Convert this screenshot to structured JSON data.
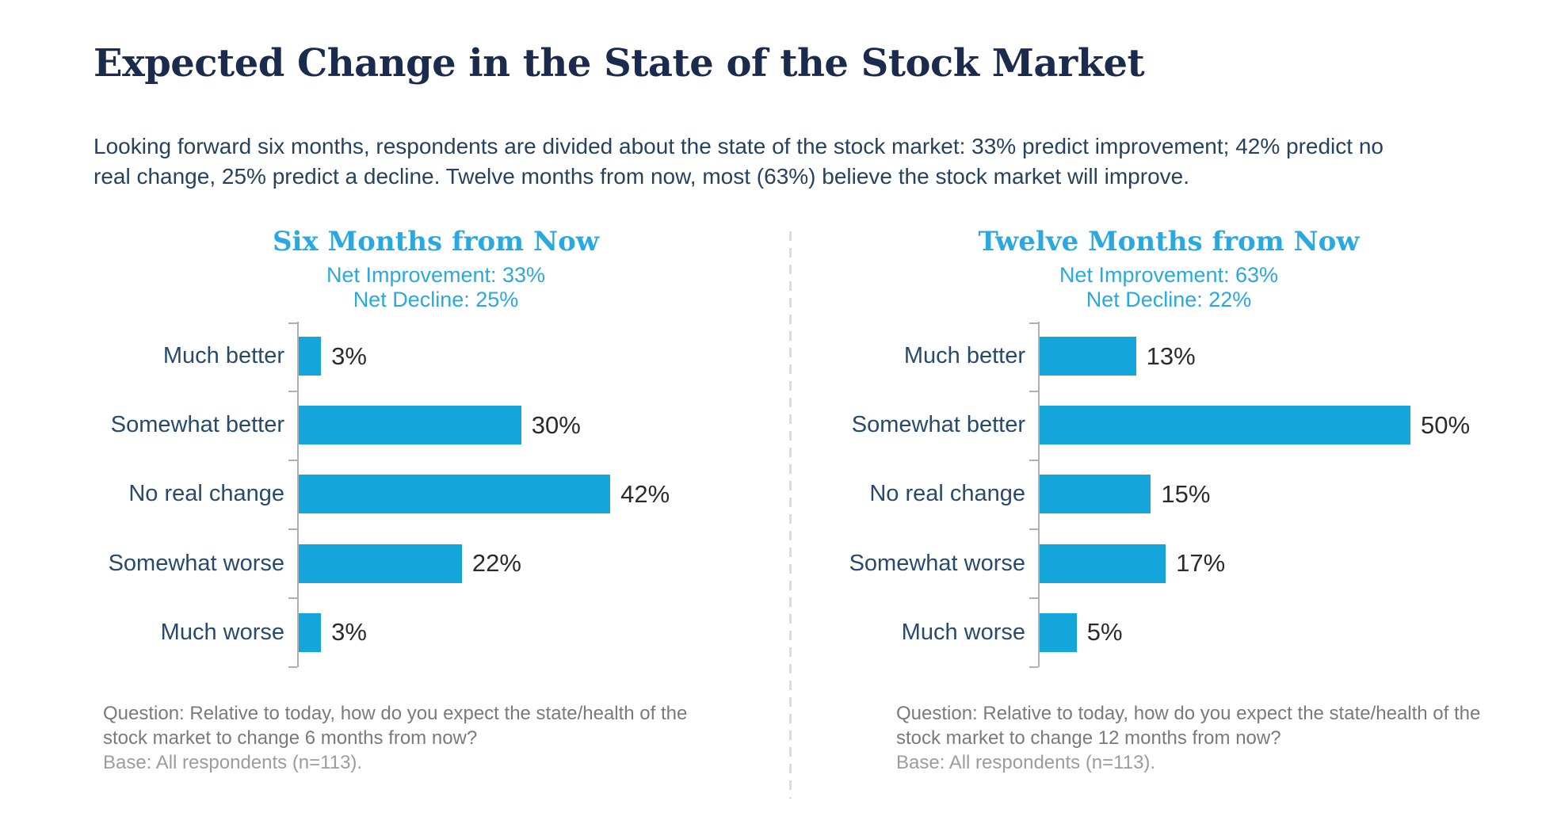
{
  "page": {
    "title": "Expected Change in the State of the Stock Market",
    "intro_line1": "Looking forward six months, respondents are divided about the state of the stock market: 33% predict improvement; 42% predict no",
    "intro_line2": "real change, 25% predict a decline. Twelve months from now, most (63%) believe the stock market will improve."
  },
  "colors": {
    "title_navy": "#1b2b4d",
    "body_navy": "#26425f",
    "accent_blue": "#29a9e0",
    "bar_blue": "#14a5db",
    "category_navy": "#274a6d",
    "value_dark": "#2b2b2b",
    "axis_gray": "#b0b0b0",
    "footnote_gray": "#7a7a7a",
    "base_gray": "#9c9c9c",
    "divider_gray": "#dcdcdc"
  },
  "chart_data": [
    {
      "type": "bar",
      "orientation": "horizontal",
      "title": "Six Months from Now",
      "net_improvement_label": "Net Improvement: 33%",
      "net_decline_label": "Net Decline: 25%",
      "categories": [
        "Much better",
        "Somewhat better",
        "No real change",
        "Somewhat worse",
        "Much worse"
      ],
      "values": [
        3,
        30,
        42,
        22,
        3
      ],
      "value_labels": [
        "3%",
        "30%",
        "42%",
        "22%",
        "3%"
      ],
      "xlim": [
        0,
        50
      ],
      "grid": false,
      "legend": "none",
      "question": "Question: Relative to today, how do you expect the state/health of the stock market to change 6 months from now?",
      "base": "Base: All respondents (n=113)."
    },
    {
      "type": "bar",
      "orientation": "horizontal",
      "title": "Twelve Months from Now",
      "net_improvement_label": "Net Improvement: 63%",
      "net_decline_label": "Net Decline: 22%",
      "categories": [
        "Much better",
        "Somewhat better",
        "No real change",
        "Somewhat worse",
        "Much worse"
      ],
      "values": [
        13,
        50,
        15,
        17,
        5
      ],
      "value_labels": [
        "13%",
        "50%",
        "15%",
        "17%",
        "5%"
      ],
      "xlim": [
        0,
        50
      ],
      "grid": false,
      "legend": "none",
      "question": "Question: Relative to today, how do you expect the state/health of the stock market to change 12 months from now?",
      "base": "Base: All respondents (n=113)."
    }
  ]
}
